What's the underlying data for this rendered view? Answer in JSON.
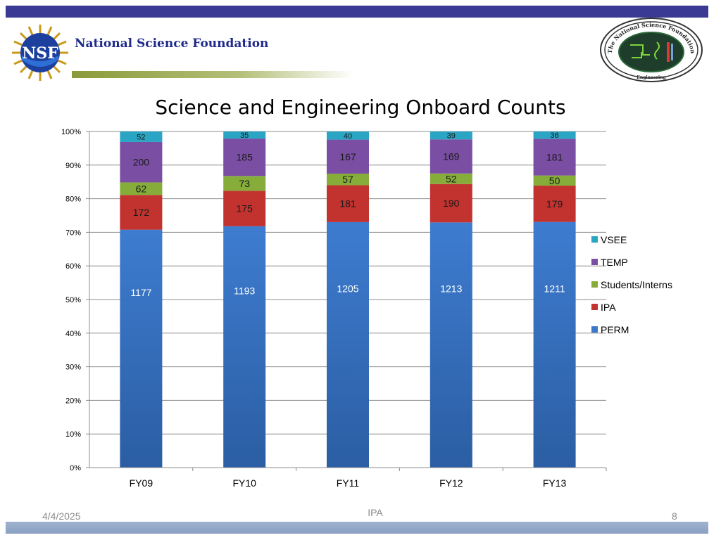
{
  "header": {
    "org_name": "National Science Foundation",
    "logo_text": "NSF",
    "seal_text": "The National Science Foundation",
    "seal_subtext": "Engineering"
  },
  "footer": {
    "date": "4/4/2025",
    "center_text": "IPA",
    "page_number": "8"
  },
  "chart_data": {
    "type": "bar",
    "stacking": "percent",
    "title": "Science and Engineering Onboard Counts",
    "categories": [
      "FY09",
      "FY10",
      "FY11",
      "FY12",
      "FY13"
    ],
    "series": [
      {
        "name": "PERM",
        "color": "#3c78c8",
        "values": [
          1177,
          1193,
          1205,
          1213,
          1211
        ]
      },
      {
        "name": "IPA",
        "color": "#c2332f",
        "values": [
          172,
          175,
          181,
          190,
          179
        ]
      },
      {
        "name": "Students/Interns",
        "color": "#86ad3a",
        "values": [
          62,
          73,
          57,
          52,
          50
        ]
      },
      {
        "name": "TEMP",
        "color": "#7a4fa3",
        "values": [
          200,
          185,
          167,
          169,
          181
        ]
      },
      {
        "name": "VSEE",
        "color": "#2aa6c4",
        "values": [
          52,
          35,
          40,
          39,
          36
        ]
      }
    ],
    "ytick_labels": [
      "0%",
      "10%",
      "20%",
      "30%",
      "40%",
      "50%",
      "60%",
      "70%",
      "80%",
      "90%",
      "100%"
    ],
    "ylim": [
      0,
      100
    ],
    "grid": true,
    "legend_position": "right"
  }
}
